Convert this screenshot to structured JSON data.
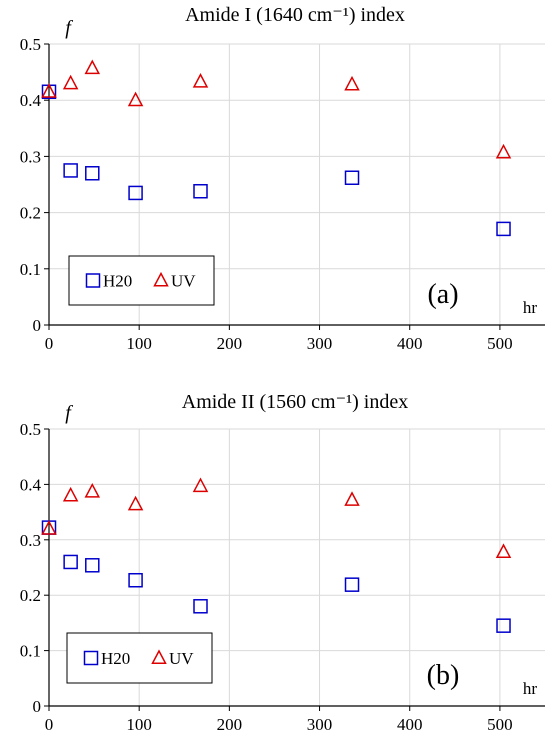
{
  "chart_data": [
    {
      "type": "scatter",
      "title": "Amide I  (1640 cm⁻¹) index",
      "ylabel": "f",
      "xlabel": "hr",
      "panel_label": "(a)",
      "xlim": [
        0,
        550
      ],
      "ylim": [
        0,
        0.5
      ],
      "xticks": [
        0,
        100,
        200,
        300,
        400,
        500
      ],
      "yticks": [
        0,
        0.1,
        0.2,
        0.3,
        0.4,
        0.5
      ],
      "grid": true,
      "legend": "bottom-left",
      "series": [
        {
          "name": "H20",
          "marker": "square",
          "color": "#0000cc",
          "x": [
            0,
            24,
            48,
            96,
            168,
            336,
            504
          ],
          "y": [
            0.415,
            0.275,
            0.27,
            0.235,
            0.238,
            0.262,
            0.171
          ]
        },
        {
          "name": "UV",
          "marker": "triangle",
          "color": "#dd0000",
          "x": [
            0,
            24,
            48,
            96,
            168,
            336,
            504
          ],
          "y": [
            0.415,
            0.43,
            0.457,
            0.4,
            0.433,
            0.428,
            0.307
          ]
        }
      ]
    },
    {
      "type": "scatter",
      "title": "Amide II (1560 cm⁻¹)  index",
      "ylabel": "f",
      "xlabel": "hr",
      "panel_label": "(b)",
      "xlim": [
        0,
        550
      ],
      "ylim": [
        0,
        0.5
      ],
      "xticks": [
        0,
        100,
        200,
        300,
        400,
        500
      ],
      "yticks": [
        0,
        0.1,
        0.2,
        0.3,
        0.4,
        0.5
      ],
      "grid": true,
      "legend": "bottom-left",
      "series": [
        {
          "name": "H20",
          "marker": "square",
          "color": "#0000cc",
          "x": [
            0,
            24,
            48,
            96,
            168,
            336,
            504
          ],
          "y": [
            0.322,
            0.26,
            0.254,
            0.227,
            0.18,
            0.219,
            0.145
          ]
        },
        {
          "name": "UV",
          "marker": "triangle",
          "color": "#dd0000",
          "x": [
            0,
            24,
            48,
            96,
            168,
            336,
            504
          ],
          "y": [
            0.32,
            0.38,
            0.387,
            0.364,
            0.397,
            0.372,
            0.278
          ]
        }
      ]
    }
  ]
}
